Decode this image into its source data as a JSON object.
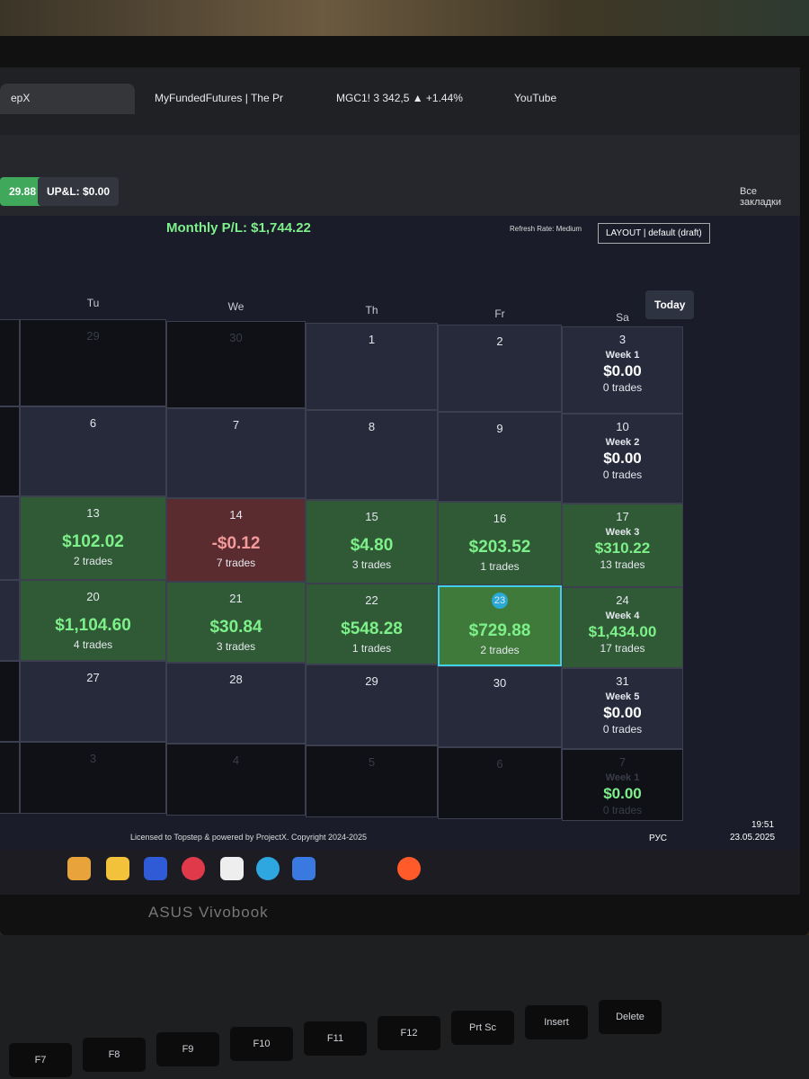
{
  "tabs": [
    "epX",
    "MyFundedFutures | The Pr",
    "MGC1! 3 342,5 ▲ +1.44%",
    "YouTube"
  ],
  "toolbar": {
    "balance": "29.88",
    "upl": "UP&L: $0.00",
    "bookmarks": "Все закладки"
  },
  "header": {
    "monthly": "Monthly P/L: $1,744.22",
    "refresh": "Refresh Rate: Medium",
    "layout": "LAYOUT | default (draft)",
    "today": "Today"
  },
  "calendar": {
    "weekdays": [
      "Tu",
      "We",
      "Th",
      "Fr",
      "Sa"
    ],
    "weeks": [
      {
        "days": [
          {
            "day": 29,
            "status": "other"
          },
          {
            "day": 30,
            "status": "other"
          },
          {
            "day": 1,
            "status": "empty"
          },
          {
            "day": 2,
            "status": "empty"
          }
        ],
        "summary": {
          "day": 3,
          "label": "Week 1",
          "pnl": "$0.00",
          "trades": "0 trades",
          "status": "empty"
        }
      },
      {
        "days": [
          {
            "day": 6,
            "status": "empty"
          },
          {
            "day": 7,
            "status": "empty"
          },
          {
            "day": 8,
            "status": "empty"
          },
          {
            "day": 9,
            "status": "empty"
          }
        ],
        "summary": {
          "day": 10,
          "label": "Week 2",
          "pnl": "$0.00",
          "trades": "0 trades",
          "status": "empty"
        }
      },
      {
        "days": [
          {
            "day": 13,
            "pnl": "$102.02",
            "trades": "2 trades",
            "status": "profit"
          },
          {
            "day": 14,
            "pnl": "-$0.12",
            "trades": "7 trades",
            "status": "loss"
          },
          {
            "day": 15,
            "pnl": "$4.80",
            "trades": "3 trades",
            "status": "profit"
          },
          {
            "day": 16,
            "pnl": "$203.52",
            "trades": "1 trades",
            "status": "profit"
          }
        ],
        "summary": {
          "day": 17,
          "label": "Week 3",
          "pnl": "$310.22",
          "trades": "13 trades",
          "status": "profit"
        }
      },
      {
        "days": [
          {
            "day": 20,
            "pnl": "$1,104.60",
            "trades": "4 trades",
            "status": "profit"
          },
          {
            "day": 21,
            "pnl": "$30.84",
            "trades": "3 trades",
            "status": "profit"
          },
          {
            "day": 22,
            "pnl": "$548.28",
            "trades": "1 trades",
            "status": "profit"
          },
          {
            "day": 23,
            "pnl": "$729.88",
            "trades": "2 trades",
            "status": "today"
          }
        ],
        "summary": {
          "day": 24,
          "label": "Week 4",
          "pnl": "$1,434.00",
          "trades": "17 trades",
          "status": "profit"
        }
      },
      {
        "days": [
          {
            "day": 27,
            "status": "empty"
          },
          {
            "day": 28,
            "status": "empty"
          },
          {
            "day": 29,
            "status": "empty"
          },
          {
            "day": 30,
            "status": "empty"
          }
        ],
        "summary": {
          "day": 31,
          "label": "Week 5",
          "pnl": "$0.00",
          "trades": "0 trades",
          "status": "empty"
        }
      },
      {
        "days": [
          {
            "day": 3,
            "status": "other"
          },
          {
            "day": 4,
            "status": "other"
          },
          {
            "day": 5,
            "status": "other"
          },
          {
            "day": 6,
            "status": "other"
          }
        ],
        "summary": {
          "day": 7,
          "label": "Week 1",
          "pnl": "$0.00",
          "trades": "0 trades",
          "status": "other"
        }
      }
    ]
  },
  "footer": "Licensed to Topstep & powered by ProjectX. Copyright 2024-2025",
  "taskbar": {
    "lang": "РУС",
    "time": "19:51",
    "date": "23.05.2025"
  },
  "laptop": {
    "brand": "ASUS Vivobook",
    "keys": [
      "F7",
      "F8",
      "F9",
      "F10",
      "F11",
      "F12",
      "Prt Sc",
      "Insert",
      "Delete"
    ]
  }
}
